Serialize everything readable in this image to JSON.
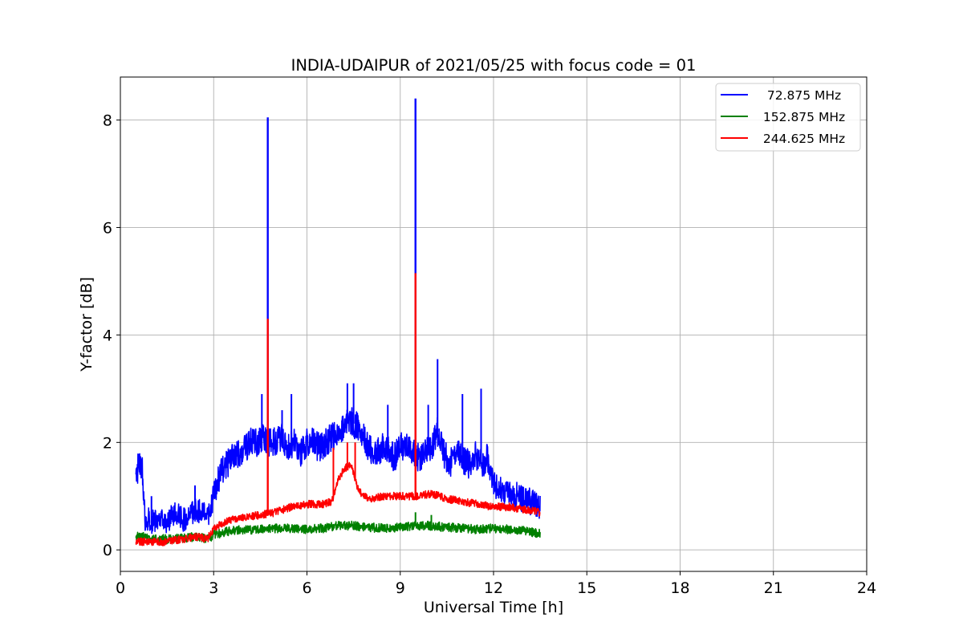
{
  "chart_data": {
    "type": "line",
    "title": "INDIA-UDAIPUR of 2021/05/25 with focus code = 01",
    "xlabel": "Universal Time [h]",
    "ylabel": "Y-factor [dB]",
    "xlim": [
      0,
      24
    ],
    "ylim": [
      -0.4,
      8.8
    ],
    "xticks": [
      0,
      3,
      6,
      9,
      12,
      15,
      18,
      21,
      24
    ],
    "xtick_labels": [
      "0",
      "3",
      "6",
      "9",
      "12",
      "15",
      "18",
      "21",
      "24"
    ],
    "yticks": [
      0,
      2,
      4,
      6,
      8
    ],
    "ytick_labels": [
      "0",
      "2",
      "4",
      "6",
      "8"
    ],
    "grid": true,
    "legend_position": "top-right",
    "series": [
      {
        "name": "72.875 MHz",
        "legend_label": "  72.875 MHz",
        "color": "#0000ff",
        "x": [
          0.5,
          0.6,
          0.7,
          0.8,
          0.9,
          1.0,
          1.2,
          1.4,
          1.6,
          1.8,
          2.0,
          2.2,
          2.4,
          2.6,
          2.8,
          3.0,
          3.2,
          3.4,
          3.6,
          3.8,
          4.0,
          4.2,
          4.4,
          4.6,
          4.74,
          4.8,
          5.0,
          5.2,
          5.4,
          5.6,
          5.8,
          6.0,
          6.2,
          6.4,
          6.6,
          6.8,
          7.0,
          7.2,
          7.4,
          7.6,
          7.8,
          8.0,
          8.2,
          8.4,
          8.6,
          8.8,
          9.0,
          9.2,
          9.4,
          9.49,
          9.6,
          9.8,
          10.0,
          10.2,
          10.4,
          10.6,
          10.8,
          11.0,
          11.2,
          11.4,
          11.6,
          11.8,
          12.0,
          12.2,
          12.4,
          12.6,
          12.8,
          13.0,
          13.2,
          13.4,
          13.5
        ],
        "y": [
          1.2,
          1.7,
          1.5,
          0.5,
          0.6,
          0.5,
          0.6,
          0.5,
          0.6,
          0.7,
          0.55,
          0.6,
          0.75,
          0.7,
          0.6,
          1.0,
          1.4,
          1.6,
          1.7,
          1.8,
          1.9,
          2.0,
          2.0,
          2.1,
          8.05,
          2.0,
          2.0,
          2.1,
          1.9,
          2.0,
          1.8,
          2.0,
          2.0,
          1.9,
          2.0,
          2.1,
          2.2,
          2.3,
          2.4,
          2.3,
          2.1,
          1.9,
          1.8,
          1.9,
          1.9,
          1.7,
          1.9,
          2.0,
          1.8,
          8.4,
          1.7,
          1.8,
          1.9,
          2.2,
          1.8,
          1.6,
          1.8,
          1.7,
          1.6,
          1.8,
          1.6,
          1.7,
          1.3,
          1.1,
          1.0,
          1.0,
          1.0,
          0.95,
          0.9,
          0.85,
          0.8
        ],
        "peaks": [
          {
            "x": 4.55,
            "y": 2.9
          },
          {
            "x": 5.2,
            "y": 2.6
          },
          {
            "x": 5.5,
            "y": 2.9
          },
          {
            "x": 7.3,
            "y": 3.1
          },
          {
            "x": 7.5,
            "y": 3.1
          },
          {
            "x": 8.6,
            "y": 2.7
          },
          {
            "x": 9.9,
            "y": 2.7
          },
          {
            "x": 10.2,
            "y": 3.55
          },
          {
            "x": 11.0,
            "y": 2.9
          },
          {
            "x": 11.6,
            "y": 3.0
          },
          {
            "x": 1.0,
            "y": 1.0
          },
          {
            "x": 2.4,
            "y": 1.2
          }
        ]
      },
      {
        "name": "152.875 MHz",
        "legend_label": " 152.875 MHz",
        "color": "#008000",
        "x": [
          0.5,
          0.8,
          1.0,
          1.5,
          2.0,
          2.5,
          2.8,
          3.0,
          3.5,
          4.0,
          4.5,
          5.0,
          5.5,
          6.0,
          6.5,
          7.0,
          7.5,
          8.0,
          8.5,
          9.0,
          9.5,
          10.0,
          10.5,
          11.0,
          11.5,
          12.0,
          12.5,
          13.0,
          13.5
        ],
        "y": [
          0.25,
          0.25,
          0.2,
          0.2,
          0.22,
          0.25,
          0.2,
          0.28,
          0.35,
          0.38,
          0.38,
          0.4,
          0.4,
          0.38,
          0.4,
          0.45,
          0.45,
          0.42,
          0.4,
          0.42,
          0.45,
          0.45,
          0.42,
          0.4,
          0.38,
          0.4,
          0.38,
          0.35,
          0.3
        ],
        "peaks": [
          {
            "x": 9.49,
            "y": 0.7
          },
          {
            "x": 10.0,
            "y": 0.65
          }
        ]
      },
      {
        "name": "244.625 MHz",
        "legend_label": " 244.625 MHz",
        "color": "#ff0000",
        "x": [
          0.5,
          0.8,
          1.0,
          1.5,
          2.0,
          2.5,
          2.8,
          3.0,
          3.5,
          4.0,
          4.5,
          4.74,
          5.0,
          5.5,
          6.0,
          6.5,
          6.8,
          7.0,
          7.2,
          7.4,
          7.6,
          7.8,
          8.0,
          8.5,
          9.0,
          9.49,
          9.6,
          10.0,
          10.5,
          11.0,
          11.5,
          12.0,
          12.5,
          13.0,
          13.5
        ],
        "y": [
          0.15,
          0.15,
          0.15,
          0.15,
          0.2,
          0.25,
          0.2,
          0.4,
          0.55,
          0.6,
          0.65,
          4.3,
          0.7,
          0.8,
          0.85,
          0.85,
          0.9,
          1.3,
          1.5,
          1.6,
          1.2,
          1.0,
          0.95,
          1.0,
          1.0,
          5.15,
          1.0,
          1.05,
          0.95,
          0.9,
          0.85,
          0.8,
          0.8,
          0.75,
          0.7
        ],
        "peaks": [
          {
            "x": 6.85,
            "y": 1.9
          },
          {
            "x": 7.3,
            "y": 2.0
          },
          {
            "x": 7.55,
            "y": 2.0
          }
        ]
      }
    ]
  }
}
